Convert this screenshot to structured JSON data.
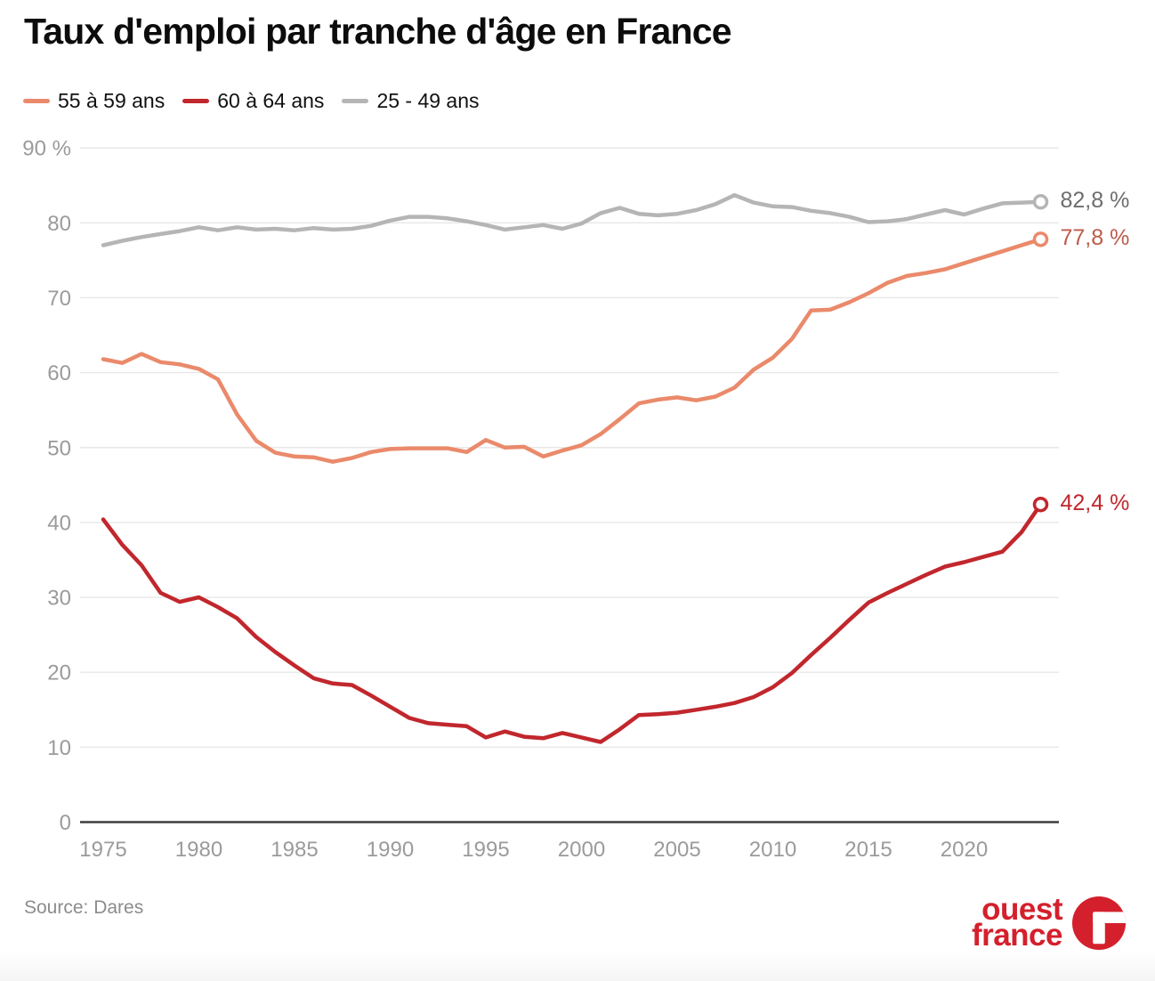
{
  "header": {
    "title": "Taux d'emploi par tranche d'âge en France"
  },
  "chart_data": {
    "type": "line",
    "title": "Taux d'emploi par tranche d'âge en France",
    "xlabel": "",
    "ylabel": "",
    "x_range": [
      1975,
      2024
    ],
    "y_range": [
      0,
      90
    ],
    "grid": true,
    "legend_position": "top-left",
    "x_tick_labels": [
      "1975",
      "1980",
      "1985",
      "1990",
      "1995",
      "2000",
      "2005",
      "2010",
      "2015",
      "2020"
    ],
    "x_tick_values": [
      1975,
      1980,
      1985,
      1990,
      1995,
      2000,
      2005,
      2010,
      2015,
      2020
    ],
    "y_tick_labels": [
      "0",
      "10",
      "20",
      "30",
      "40",
      "50",
      "60",
      "70",
      "80",
      "90 %"
    ],
    "y_tick_values": [
      0,
      10,
      20,
      30,
      40,
      50,
      60,
      70,
      80,
      90
    ],
    "years": [
      1975,
      1976,
      1977,
      1978,
      1979,
      1980,
      1981,
      1982,
      1983,
      1984,
      1985,
      1986,
      1987,
      1988,
      1989,
      1990,
      1991,
      1992,
      1993,
      1994,
      1995,
      1996,
      1997,
      1998,
      1999,
      2000,
      2001,
      2002,
      2003,
      2004,
      2005,
      2006,
      2007,
      2008,
      2009,
      2010,
      2011,
      2012,
      2013,
      2014,
      2015,
      2016,
      2017,
      2018,
      2019,
      2020,
      2021,
      2022,
      2023,
      2024
    ],
    "series": [
      {
        "name": "55 à 59 ans",
        "color": "#ea8a6b",
        "end_label": "77,8 %",
        "end_label_color": "#bd5b49",
        "end_value": 77.8,
        "values": [
          61.8,
          61.3,
          62.5,
          61.4,
          61.1,
          60.5,
          59.1,
          54.4,
          50.9,
          49.3,
          48.8,
          48.7,
          48.1,
          48.6,
          49.4,
          49.8,
          49.9,
          49.9,
          49.9,
          49.4,
          51.0,
          50.0,
          50.1,
          48.8,
          49.6,
          50.3,
          51.8,
          53.8,
          55.9,
          56.4,
          56.7,
          56.3,
          56.8,
          58.0,
          60.4,
          62.0,
          64.5,
          68.3,
          68.4,
          69.4,
          70.6,
          72.0,
          72.9,
          73.3,
          73.8,
          74.6,
          75.4,
          76.2,
          77.0,
          77.8
        ]
      },
      {
        "name": "60 à 64 ans",
        "color": "#c1272d",
        "end_label": "42,4 %",
        "end_label_color": "#c1272d",
        "end_value": 42.4,
        "values": [
          40.4,
          37.0,
          34.3,
          30.6,
          29.4,
          30.0,
          28.7,
          27.2,
          24.7,
          22.7,
          20.9,
          19.2,
          18.5,
          18.3,
          16.9,
          15.4,
          13.9,
          13.2,
          13.0,
          12.8,
          11.3,
          12.1,
          11.4,
          11.2,
          11.9,
          11.3,
          10.7,
          12.4,
          14.3,
          14.4,
          14.6,
          15.0,
          15.4,
          15.9,
          16.7,
          18.0,
          19.9,
          22.3,
          24.6,
          27.0,
          29.3,
          30.6,
          31.8,
          33.0,
          34.1,
          34.7,
          35.4,
          36.1,
          38.7,
          42.4
        ]
      },
      {
        "name": "25 - 49 ans",
        "color": "#b5b5b5",
        "end_label": "82,8 %",
        "end_label_color": "#6d6d6d",
        "end_value": 82.8,
        "values": [
          77.0,
          77.6,
          78.1,
          78.5,
          78.9,
          79.4,
          79.0,
          79.4,
          79.1,
          79.2,
          79.0,
          79.3,
          79.1,
          79.2,
          79.6,
          80.3,
          80.8,
          80.8,
          80.6,
          80.2,
          79.7,
          79.1,
          79.4,
          79.7,
          79.2,
          79.9,
          81.3,
          82.0,
          81.2,
          81.0,
          81.2,
          81.7,
          82.5,
          83.7,
          82.7,
          82.2,
          82.1,
          81.6,
          81.3,
          80.8,
          80.1,
          80.2,
          80.5,
          81.1,
          81.7,
          81.1,
          81.9,
          82.6,
          82.7,
          82.8
        ]
      }
    ]
  },
  "footer": {
    "source": "Source: Dares",
    "logo": {
      "line1": "ouest",
      "line2": "france",
      "color": "#d4202c"
    }
  }
}
